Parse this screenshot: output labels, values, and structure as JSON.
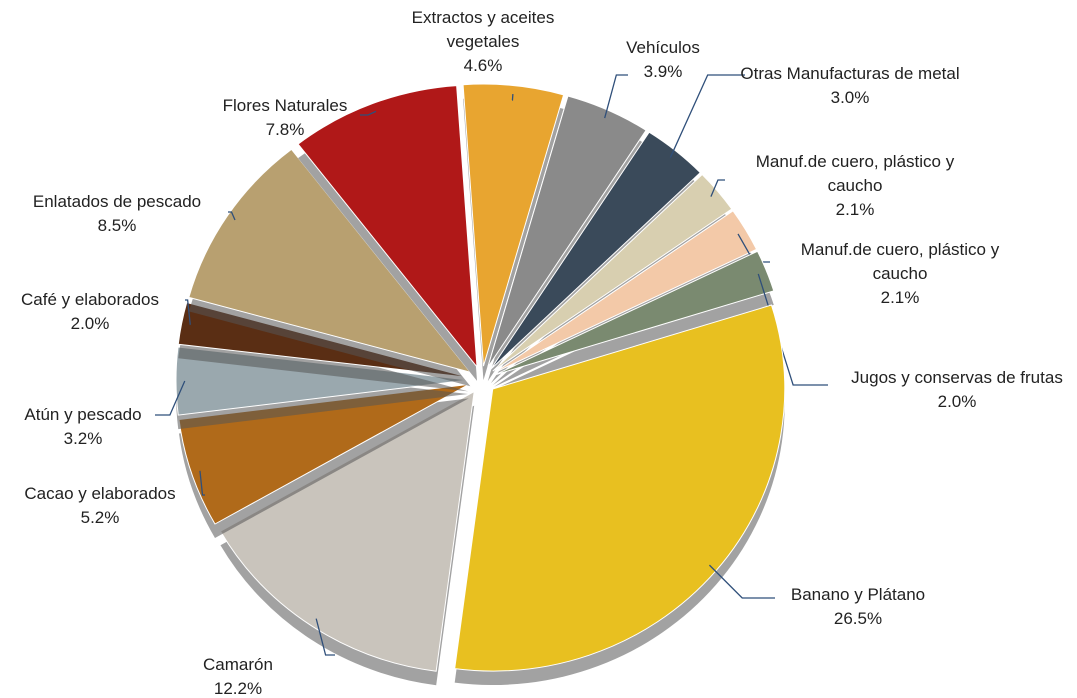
{
  "chart_data": {
    "type": "pie",
    "categories": [
      "Extractos y aceites vegetales",
      "Vehículos",
      "Otras Manufacturas de metal",
      "Manuf.de cuero, plástico y caucho",
      "Manuf.de cuero, plástico y caucho",
      "Jugos y conservas de frutas",
      "Banano y Plátano",
      "Camarón",
      "Cacao y elaborados",
      "Atún y pescado",
      "Café y elaborados",
      "Enlatados de pescado",
      "Flores Naturales"
    ],
    "values": [
      4.6,
      3.9,
      3.0,
      2.1,
      2.1,
      2.0,
      26.5,
      12.2,
      5.2,
      3.2,
      2.0,
      8.5,
      7.8
    ],
    "value_labels": [
      "4.6%",
      "3.9%",
      "3.0%",
      "2.1%",
      "2.1%",
      "2.0%",
      "26.5%",
      "12.2%",
      "5.2%",
      "3.2%",
      "2.0%",
      "8.5%",
      "7.8%"
    ],
    "colors": [
      "#e8a530",
      "#8a8a8a",
      "#3a4a5a",
      "#d8cfb0",
      "#f3c9a8",
      "#7a8a70",
      "#e8c020",
      "#c9c4bc",
      "#b06a1a",
      "#9aa8ae",
      "#5a2e14",
      "#b8a070",
      "#b01818"
    ]
  }
}
